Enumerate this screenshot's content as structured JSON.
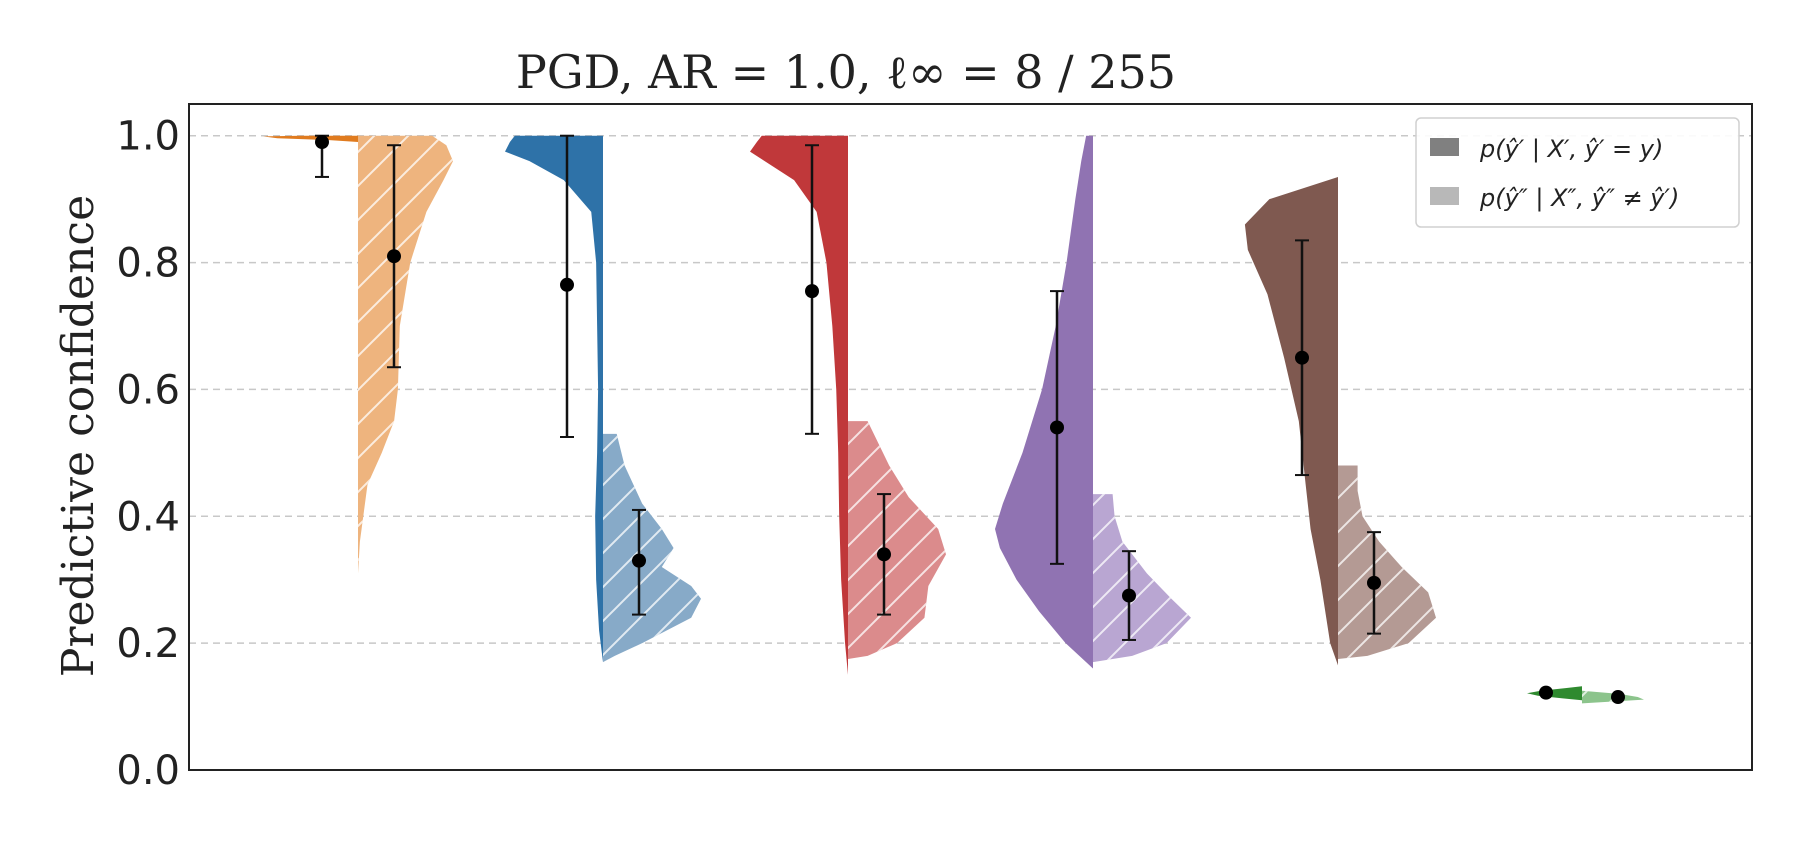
{
  "chart_data": {
    "type": "violin",
    "title": "PGD, AR = 1.0, ℓ∞ = 8 / 255",
    "xlabel": "",
    "ylabel": "Predictive confidence",
    "ylim": [
      0.0,
      1.05
    ],
    "yticks": [
      "0.0",
      "0.2",
      "0.4",
      "0.6",
      "0.8",
      "1.0"
    ],
    "grid": "horizontal dashed",
    "legend_position": "top-right",
    "legend": [
      {
        "label": "p(ŷ′ | X′, ŷ′ = y)",
        "tone": "dark"
      },
      {
        "label": "p(ŷ″ | X″, ŷ″ ≠ ŷ′)",
        "tone": "light"
      }
    ],
    "groups": [
      {
        "color": "#e07b1f",
        "light_color": "#eeb47e",
        "left": {
          "mean": 0.99,
          "err_low": 0.935,
          "err_high": 1.0,
          "range": [
            0.99,
            1.0
          ],
          "profile": [
            [
              0.99,
              0.0
            ],
            [
              0.993,
              0.3
            ],
            [
              0.996,
              0.85
            ],
            [
              0.999,
              1.0
            ],
            [
              1.0,
              0.6
            ]
          ]
        },
        "right": {
          "mean": 0.81,
          "err_low": 0.635,
          "err_high": 0.985,
          "range": [
            0.31,
            1.0
          ],
          "profile": [
            [
              0.31,
              0.0
            ],
            [
              0.36,
              0.02
            ],
            [
              0.45,
              0.1
            ],
            [
              0.5,
              0.25
            ],
            [
              0.55,
              0.38
            ],
            [
              0.6,
              0.42
            ],
            [
              0.7,
              0.44
            ],
            [
              0.8,
              0.55
            ],
            [
              0.88,
              0.72
            ],
            [
              0.93,
              0.9
            ],
            [
              0.96,
              1.0
            ],
            [
              0.985,
              0.93
            ],
            [
              1.0,
              0.78
            ]
          ]
        }
      },
      {
        "color": "#2e72a8",
        "light_color": "#87aac8",
        "left": {
          "mean": 0.765,
          "err_low": 0.525,
          "err_high": 1.0,
          "range": [
            0.17,
            1.0
          ],
          "profile": [
            [
              0.17,
              0.0
            ],
            [
              0.22,
              0.04
            ],
            [
              0.3,
              0.07
            ],
            [
              0.4,
              0.08
            ],
            [
              0.5,
              0.06
            ],
            [
              0.6,
              0.05
            ],
            [
              0.7,
              0.06
            ],
            [
              0.8,
              0.07
            ],
            [
              0.88,
              0.12
            ],
            [
              0.93,
              0.4
            ],
            [
              0.96,
              0.75
            ],
            [
              0.975,
              1.0
            ],
            [
              0.99,
              0.95
            ],
            [
              1.0,
              0.9
            ]
          ]
        },
        "right": {
          "mean": 0.33,
          "err_low": 0.245,
          "err_high": 0.41,
          "range": [
            0.17,
            0.53
          ],
          "profile": [
            [
              0.17,
              0.0
            ],
            [
              0.18,
              0.12
            ],
            [
              0.2,
              0.4
            ],
            [
              0.24,
              0.9
            ],
            [
              0.27,
              1.0
            ],
            [
              0.29,
              0.9
            ],
            [
              0.32,
              0.6
            ],
            [
              0.35,
              0.72
            ],
            [
              0.38,
              0.6
            ],
            [
              0.42,
              0.4
            ],
            [
              0.48,
              0.22
            ],
            [
              0.53,
              0.14
            ]
          ]
        }
      },
      {
        "color": "#c0383a",
        "light_color": "#db8b8c",
        "left": {
          "mean": 0.755,
          "err_low": 0.53,
          "err_high": 0.985,
          "range": [
            0.15,
            1.0
          ],
          "profile": [
            [
              0.15,
              0.0
            ],
            [
              0.2,
              0.03
            ],
            [
              0.3,
              0.07
            ],
            [
              0.4,
              0.09
            ],
            [
              0.5,
              0.1
            ],
            [
              0.6,
              0.12
            ],
            [
              0.7,
              0.16
            ],
            [
              0.8,
              0.22
            ],
            [
              0.88,
              0.32
            ],
            [
              0.93,
              0.55
            ],
            [
              0.96,
              0.85
            ],
            [
              0.975,
              1.0
            ],
            [
              0.99,
              0.93
            ],
            [
              1.0,
              0.88
            ]
          ]
        },
        "right": {
          "mean": 0.34,
          "err_low": 0.245,
          "err_high": 0.435,
          "range": [
            0.175,
            0.55
          ],
          "profile": [
            [
              0.175,
              0.0
            ],
            [
              0.18,
              0.2
            ],
            [
              0.2,
              0.5
            ],
            [
              0.24,
              0.78
            ],
            [
              0.29,
              0.82
            ],
            [
              0.34,
              1.0
            ],
            [
              0.38,
              0.92
            ],
            [
              0.43,
              0.62
            ],
            [
              0.48,
              0.42
            ],
            [
              0.55,
              0.2
            ]
          ]
        }
      },
      {
        "color": "#9073b2",
        "light_color": "#b9a6d2",
        "left": {
          "mean": 0.54,
          "err_low": 0.325,
          "err_high": 0.755,
          "range": [
            0.16,
            1.0
          ],
          "profile": [
            [
              0.16,
              0.0
            ],
            [
              0.2,
              0.28
            ],
            [
              0.25,
              0.55
            ],
            [
              0.3,
              0.78
            ],
            [
              0.35,
              0.95
            ],
            [
              0.38,
              1.0
            ],
            [
              0.42,
              0.92
            ],
            [
              0.5,
              0.72
            ],
            [
              0.6,
              0.52
            ],
            [
              0.7,
              0.38
            ],
            [
              0.8,
              0.27
            ],
            [
              0.9,
              0.18
            ],
            [
              0.96,
              0.12
            ],
            [
              1.0,
              0.07
            ]
          ]
        },
        "right": {
          "mean": 0.275,
          "err_low": 0.205,
          "err_high": 0.345,
          "range": [
            0.17,
            0.435
          ],
          "profile": [
            [
              0.17,
              0.0
            ],
            [
              0.18,
              0.4
            ],
            [
              0.2,
              0.75
            ],
            [
              0.24,
              1.0
            ],
            [
              0.27,
              0.8
            ],
            [
              0.31,
              0.55
            ],
            [
              0.36,
              0.3
            ],
            [
              0.4,
              0.22
            ],
            [
              0.435,
              0.2
            ]
          ]
        }
      },
      {
        "color": "#7f5950",
        "light_color": "#b49a94",
        "left": {
          "mean": 0.65,
          "err_low": 0.465,
          "err_high": 0.835,
          "range": [
            0.165,
            0.935
          ],
          "profile": [
            [
              0.165,
              0.0
            ],
            [
              0.2,
              0.08
            ],
            [
              0.3,
              0.18
            ],
            [
              0.38,
              0.28
            ],
            [
              0.45,
              0.33
            ],
            [
              0.55,
              0.4
            ],
            [
              0.65,
              0.55
            ],
            [
              0.75,
              0.72
            ],
            [
              0.82,
              0.92
            ],
            [
              0.86,
              0.95
            ],
            [
              0.9,
              0.7
            ],
            [
              0.935,
              0.0
            ]
          ]
        },
        "right": {
          "mean": 0.295,
          "err_low": 0.215,
          "err_high": 0.375,
          "range": [
            0.175,
            0.48
          ],
          "profile": [
            [
              0.175,
              0.0
            ],
            [
              0.18,
              0.3
            ],
            [
              0.2,
              0.72
            ],
            [
              0.24,
              1.0
            ],
            [
              0.28,
              0.92
            ],
            [
              0.32,
              0.65
            ],
            [
              0.36,
              0.42
            ],
            [
              0.4,
              0.25
            ],
            [
              0.44,
              0.2
            ],
            [
              0.48,
              0.2
            ]
          ]
        }
      },
      {
        "color": "#2f8a2f",
        "light_color": "#8cc48c",
        "left": {
          "mean": 0.122,
          "err_low": 0.12,
          "err_high": 0.124,
          "range": [
            0.11,
            0.132
          ],
          "profile": [
            [
              0.11,
              0.0
            ],
            [
              0.113,
              0.35
            ],
            [
              0.117,
              0.8
            ],
            [
              0.121,
              1.0
            ],
            [
              0.125,
              0.75
            ],
            [
              0.129,
              0.3
            ],
            [
              0.132,
              0.0
            ]
          ]
        },
        "right": {
          "mean": 0.115,
          "err_low": 0.113,
          "err_high": 0.117,
          "range": [
            0.105,
            0.125
          ],
          "profile": [
            [
              0.105,
              0.0
            ],
            [
              0.108,
              0.5
            ],
            [
              0.111,
              1.0
            ],
            [
              0.115,
              0.9
            ],
            [
              0.12,
              0.6
            ],
            [
              0.125,
              0.0
            ]
          ]
        }
      }
    ]
  }
}
